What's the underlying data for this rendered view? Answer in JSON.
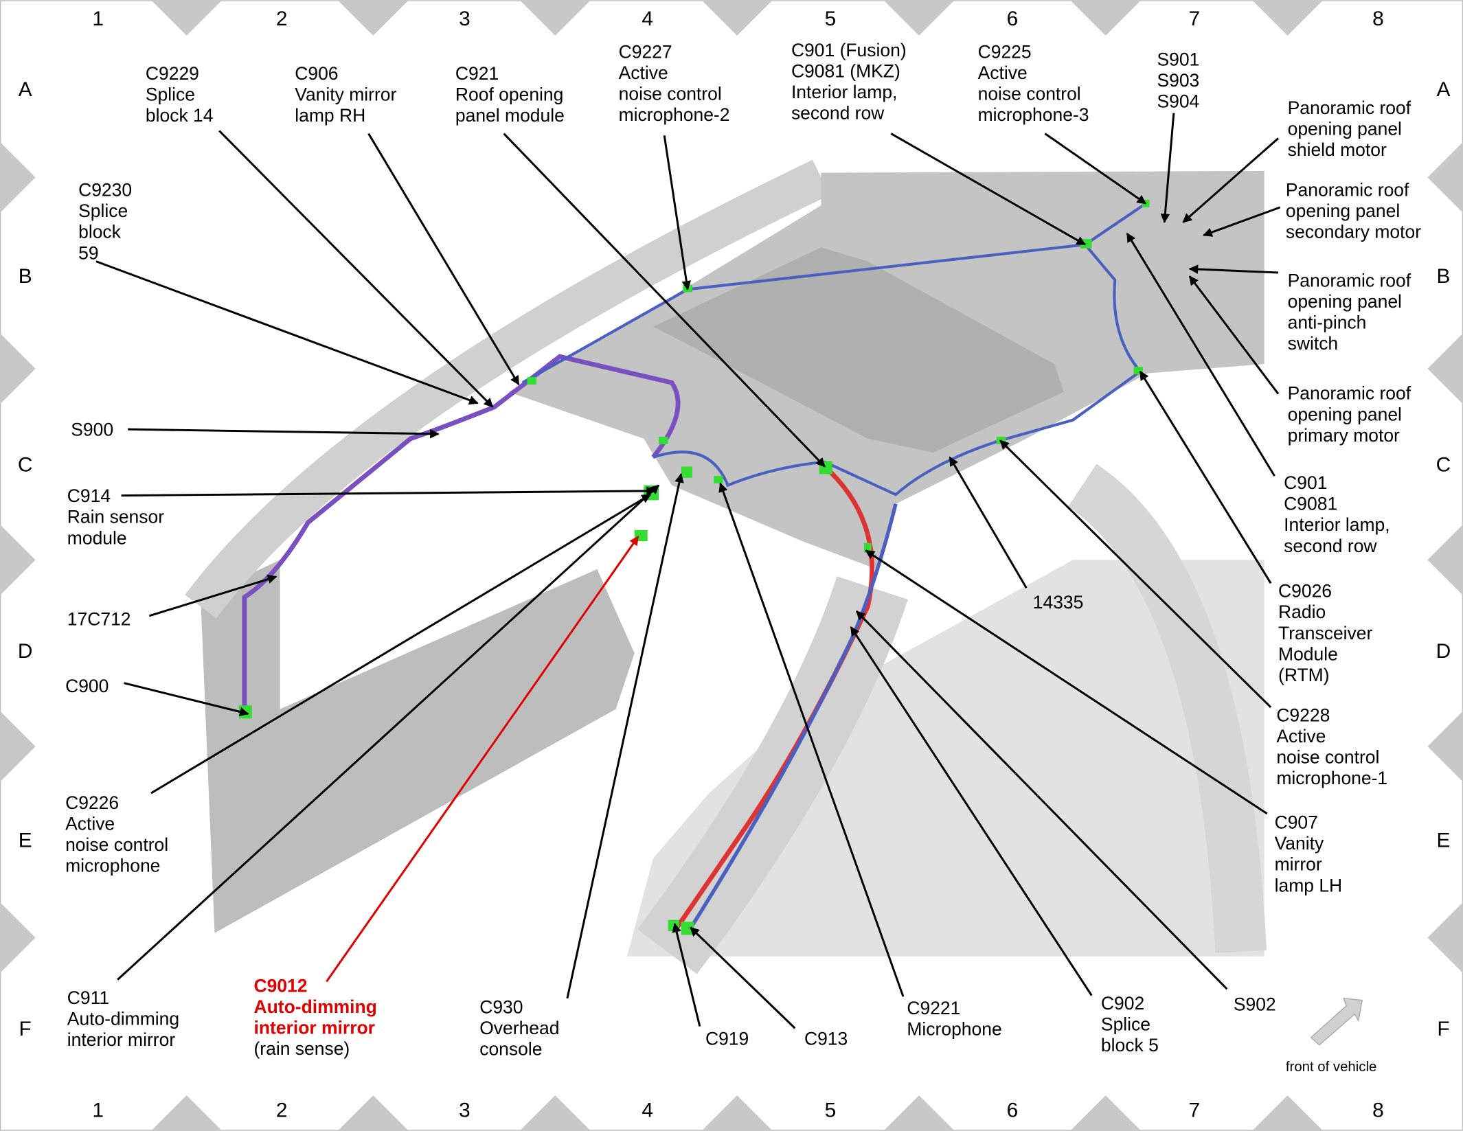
{
  "grid": {
    "columns": [
      "1",
      "2",
      "3",
      "4",
      "5",
      "6",
      "7",
      "8"
    ],
    "rows": [
      "A",
      "B",
      "C",
      "D",
      "E",
      "F"
    ]
  },
  "callouts": [
    {
      "lines": [
        "C9229",
        "Splice",
        "block 14"
      ]
    },
    {
      "lines": [
        "C906",
        "Vanity mirror",
        "lamp RH"
      ]
    },
    {
      "lines": [
        "C921",
        "Roof opening",
        "panel module"
      ]
    },
    {
      "lines": [
        "C9227",
        "Active",
        "noise control",
        "microphone-2"
      ]
    },
    {
      "lines": [
        "C901 (Fusion)",
        "C9081 (MKZ)",
        "Interior lamp,",
        "second row"
      ]
    },
    {
      "lines": [
        "C9225",
        "Active",
        "noise control",
        "microphone-3"
      ]
    },
    {
      "lines": [
        "S901",
        "S903",
        "S904"
      ]
    },
    {
      "lines": [
        "Panoramic roof",
        "opening panel",
        "shield motor"
      ]
    },
    {
      "lines": [
        "Panoramic roof",
        "opening panel",
        "secondary motor"
      ]
    },
    {
      "lines": [
        "Panoramic roof",
        "opening panel",
        "anti-pinch",
        "switch"
      ]
    },
    {
      "lines": [
        "Panoramic roof",
        "opening panel",
        "primary motor"
      ]
    },
    {
      "lines": [
        "C901",
        "C9081",
        "Interior lamp,",
        "second row"
      ]
    },
    {
      "lines": [
        "C9026",
        "Radio",
        "Transceiver",
        "Module",
        "(RTM)"
      ]
    },
    {
      "lines": [
        "C9228",
        "Active",
        "noise control",
        "microphone-1"
      ]
    },
    {
      "lines": [
        "C907",
        "Vanity",
        "mirror",
        "lamp LH"
      ]
    },
    {
      "lines": [
        "S902"
      ]
    },
    {
      "lines": [
        "C902",
        "Splice",
        "block 5"
      ]
    },
    {
      "lines": [
        "14335"
      ]
    },
    {
      "lines": [
        "C9221",
        "Microphone"
      ]
    },
    {
      "lines": [
        "C913"
      ]
    },
    {
      "lines": [
        "C919"
      ]
    },
    {
      "lines": [
        "C930",
        "Overhead",
        "console"
      ]
    },
    {
      "lines": [
        "C9012",
        "Auto-dimming",
        "interior mirror"
      ],
      "note": "(rain sense)",
      "color": "#e00000"
    },
    {
      "lines": [
        "C911",
        "Auto-dimming",
        "interior mirror"
      ]
    },
    {
      "lines": [
        "C9226",
        "Active",
        "noise control",
        "microphone"
      ]
    },
    {
      "lines": [
        "C900"
      ]
    },
    {
      "lines": [
        "17C712"
      ]
    },
    {
      "lines": [
        "C914",
        "Rain sensor",
        "module"
      ]
    },
    {
      "lines": [
        "S900"
      ]
    },
    {
      "lines": [
        "C9230",
        "Splice",
        "block",
        "59"
      ]
    }
  ],
  "direction_note": "front of vehicle"
}
